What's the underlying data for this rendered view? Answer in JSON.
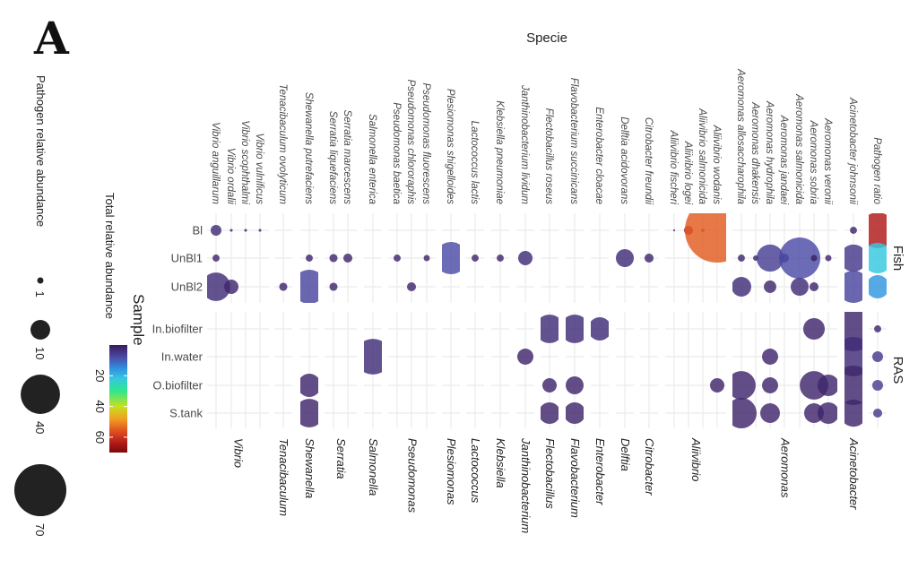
{
  "panel_letter": "A",
  "chart_data": {
    "type": "bubble",
    "xlabel": "Specie",
    "ylabel": "Sample",
    "size_legend": {
      "title": "Pathogen relative abundance",
      "values": [
        1,
        10,
        40,
        70
      ]
    },
    "color_legend": {
      "title": "Total relative abundance",
      "ticks": [
        20,
        40,
        60
      ],
      "range": [
        0,
        70
      ],
      "stops": [
        [
          0,
          "#3b1a5a"
        ],
        [
          8,
          "#4b4aa6"
        ],
        [
          15,
          "#2f8fe0"
        ],
        [
          22,
          "#36c8e0"
        ],
        [
          30,
          "#2ee88a"
        ],
        [
          40,
          "#c8e020"
        ],
        [
          48,
          "#f0a020"
        ],
        [
          56,
          "#e05020"
        ],
        [
          64,
          "#b01818"
        ],
        [
          70,
          "#7a0a0a"
        ]
      ]
    },
    "facet_rows": [
      {
        "label": "Fish",
        "samples": [
          "Bl",
          "UnBl1",
          "UnBl2"
        ]
      },
      {
        "label": "RAS",
        "samples": [
          "In.biofilter",
          "In.water",
          "O.biofilter",
          "S.tank"
        ]
      }
    ],
    "genera": [
      {
        "genus": "Vibrio",
        "species": [
          "Vibrio anguillarum",
          "Vibrio ordalii",
          "Vibrio scophthalmi",
          "Vibrio vulnificus"
        ]
      },
      {
        "genus": "Tenacibaculum",
        "species": [
          "Tenacibaculum ovolyticum"
        ]
      },
      {
        "genus": "Shewanella",
        "species": [
          "Shewanella putrefaciens"
        ]
      },
      {
        "genus": "Serratia",
        "species": [
          "Serratia liquefaciens",
          "Serratia marcescens"
        ]
      },
      {
        "genus": "Salmonella",
        "species": [
          "Salmonella enterica"
        ]
      },
      {
        "genus": "Pseudomonas",
        "species": [
          "Pseudomonas baetica",
          "Pseudomonas chlororaphis",
          "Pseudomonas fluorescens"
        ]
      },
      {
        "genus": "Plesiomonas",
        "species": [
          "Plesiomonas shigelloides"
        ]
      },
      {
        "genus": "Lactococcus",
        "species": [
          "Lactococcus lactis"
        ]
      },
      {
        "genus": "Klebsiella",
        "species": [
          "Klebsiella pneumoniae"
        ]
      },
      {
        "genus": "Janthinobacterium",
        "species": [
          "Janthinobacterium lividum"
        ]
      },
      {
        "genus": "Flectobacillus",
        "species": [
          "Flectobacillus roseus"
        ]
      },
      {
        "genus": "Flavobacterium",
        "species": [
          "Flavobacterium succinicans"
        ]
      },
      {
        "genus": "Enterobacter",
        "species": [
          "Enterobacter cloacae"
        ]
      },
      {
        "genus": "Delftia",
        "species": [
          "Delftia acidovorans"
        ]
      },
      {
        "genus": "Citrobacter",
        "species": [
          "Citrobacter freundii"
        ]
      },
      {
        "genus": "Aliivibrio",
        "species": [
          "Aliivibrio fischeri",
          "Aliivibrio logei",
          "Aliivibrio salmonicida",
          "Aliivibrio wodanis"
        ]
      },
      {
        "genus": "Aeromonas",
        "species": [
          "Aeromonas allosaccharophila",
          "Aeromonas dhakensis",
          "Aeromonas hydrophila",
          "Aeromonas jandaei",
          "Aeromonas salmonicida",
          "Aeromonas sobria",
          "Aeromonas veronii"
        ]
      },
      {
        "genus": "Acinetobacter",
        "species": [
          "Acinetobacter johnsonii"
        ]
      },
      {
        "genus": "",
        "species": [
          "Pathogen ratio"
        ]
      }
    ],
    "points": [
      {
        "species": "Vibrio anguillarum",
        "sample": "Bl",
        "size": 3,
        "total": 3
      },
      {
        "species": "Vibrio ordalii",
        "sample": "Bl",
        "size": 0.2,
        "total": 2
      },
      {
        "species": "Vibrio scophthalmi",
        "sample": "Bl",
        "size": 0.2,
        "total": 2
      },
      {
        "species": "Vibrio vulnificus",
        "sample": "Bl",
        "size": 0.2,
        "total": 2
      },
      {
        "species": "Aliivibrio fischeri",
        "sample": "Bl",
        "size": 0.1,
        "total": 2
      },
      {
        "species": "Aliivibrio logei",
        "sample": "Bl",
        "size": 2.1,
        "total": 64
      },
      {
        "species": "Aliivibrio salmonicida",
        "sample": "Bl",
        "size": 0.3,
        "total": 60
      },
      {
        "species": "Aliivibrio wodanis",
        "sample": "Bl",
        "size": 108,
        "total": 55
      },
      {
        "species": "Acinetobacter johnsonii",
        "sample": "Bl",
        "size": 1.3,
        "total": 2
      },
      {
        "species": "Pathogen ratio",
        "sample": "Bl",
        "size": 33,
        "total": 64
      },
      {
        "species": "Vibrio anguillarum",
        "sample": "UnBl1",
        "size": 1.3,
        "total": 2
      },
      {
        "species": "Shewanella putrefaciens",
        "sample": "UnBl1",
        "size": 1.3,
        "total": 2
      },
      {
        "species": "Serratia liquefaciens",
        "sample": "UnBl1",
        "size": 1.7,
        "total": 2
      },
      {
        "species": "Serratia marcescens",
        "sample": "UnBl1",
        "size": 2.1,
        "total": 2
      },
      {
        "species": "Pseudomonas baetica",
        "sample": "UnBl1",
        "size": 1.3,
        "total": 2
      },
      {
        "species": "Pseudomonas fluorescens",
        "sample": "UnBl1",
        "size": 1,
        "total": 2
      },
      {
        "species": "Plesiomonas shigelloides",
        "sample": "UnBl1",
        "size": 27,
        "total": 8
      },
      {
        "species": "Lactococcus lactis",
        "sample": "UnBl1",
        "size": 1.3,
        "total": 2
      },
      {
        "species": "Klebsiella pneumoniae",
        "sample": "UnBl1",
        "size": 1.3,
        "total": 2
      },
      {
        "species": "Janthinobacterium lividum",
        "sample": "UnBl1",
        "size": 5.3,
        "total": 3
      },
      {
        "species": "Delftia acidovorans",
        "sample": "UnBl1",
        "size": 8.3,
        "total": 3
      },
      {
        "species": "Citrobacter freundii",
        "sample": "UnBl1",
        "size": 2.1,
        "total": 2
      },
      {
        "species": "Aeromonas allosaccharophila",
        "sample": "UnBl1",
        "size": 1.3,
        "total": 2
      },
      {
        "species": "Aeromonas dhakensis",
        "sample": "UnBl1",
        "size": 0.75,
        "total": 2
      },
      {
        "species": "Aeromonas hydrophila",
        "sample": "UnBl1",
        "size": 19,
        "total": 6
      },
      {
        "species": "Aeromonas jandaei",
        "sample": "UnBl1",
        "size": 2.1,
        "total": 4
      },
      {
        "species": "Aeromonas salmonicida",
        "sample": "UnBl1",
        "size": 44,
        "total": 8
      },
      {
        "species": "Aeromonas sobria",
        "sample": "UnBl1",
        "size": 1,
        "total": 1
      },
      {
        "species": "Aeromonas veronii",
        "sample": "UnBl1",
        "size": 1,
        "total": 2
      },
      {
        "species": "Acinetobacter johnsonii",
        "sample": "UnBl1",
        "size": 19,
        "total": 5
      },
      {
        "species": "Pathogen ratio",
        "sample": "UnBl1",
        "size": 24,
        "total": 22
      },
      {
        "species": "Vibrio anguillarum",
        "sample": "UnBl2",
        "size": 21,
        "total": 3
      },
      {
        "species": "Vibrio ordalii",
        "sample": "UnBl2",
        "size": 5.3,
        "total": 2
      },
      {
        "species": "Tenacibaculum ovolyticum",
        "sample": "UnBl2",
        "size": 1.7,
        "total": 2
      },
      {
        "species": "Shewanella putrefaciens",
        "sample": "UnBl2",
        "size": 30,
        "total": 7
      },
      {
        "species": "Serratia liquefaciens",
        "sample": "UnBl2",
        "size": 1.7,
        "total": 2
      },
      {
        "species": "Pseudomonas chlororaphis",
        "sample": "UnBl2",
        "size": 2.1,
        "total": 2
      },
      {
        "species": "Aeromonas allosaccharophila",
        "sample": "UnBl2",
        "size": 10,
        "total": 3
      },
      {
        "species": "Aeromonas hydrophila",
        "sample": "UnBl2",
        "size": 4,
        "total": 2
      },
      {
        "species": "Aeromonas salmonicida",
        "sample": "UnBl2",
        "size": 8.3,
        "total": 3
      },
      {
        "species": "Aeromonas sobria",
        "sample": "UnBl2",
        "size": 2.1,
        "total": 2
      },
      {
        "species": "Acinetobacter johnsonii",
        "sample": "UnBl2",
        "size": 27,
        "total": 7
      },
      {
        "species": "Pathogen ratio",
        "sample": "UnBl2",
        "size": 14,
        "total": 16
      },
      {
        "species": "Flectobacillus roseus",
        "sample": "In.biofilter",
        "size": 21,
        "total": 3
      },
      {
        "species": "Flavobacterium succinicans",
        "sample": "In.biofilter",
        "size": 21,
        "total": 3
      },
      {
        "species": "Enterobacter cloacae",
        "sample": "In.biofilter",
        "size": 14,
        "total": 3
      },
      {
        "species": "Aeromonas sobria",
        "sample": "In.biofilter",
        "size": 12,
        "total": 2
      },
      {
        "species": "Acinetobacter johnsonii",
        "sample": "In.biofilter",
        "size": 52,
        "total": 2
      },
      {
        "species": "Pathogen ratio",
        "sample": "In.biofilter",
        "size": 1.3,
        "total": 2
      },
      {
        "species": "Salmonella enterica",
        "sample": "In.water",
        "size": 33,
        "total": 3
      },
      {
        "species": "Janthinobacterium lividum",
        "sample": "In.water",
        "size": 6.7,
        "total": 2
      },
      {
        "species": "Aeromonas hydrophila",
        "sample": "In.water",
        "size": 6.7,
        "total": 2
      },
      {
        "species": "Acinetobacter johnsonii",
        "sample": "In.water",
        "size": 40,
        "total": 3
      },
      {
        "species": "Pathogen ratio",
        "sample": "In.water",
        "size": 3,
        "total": 5
      },
      {
        "species": "Shewanella putrefaciens",
        "sample": "O.biofilter",
        "size": 14,
        "total": 2
      },
      {
        "species": "Flectobacillus roseus",
        "sample": "O.biofilter",
        "size": 5.3,
        "total": 2
      },
      {
        "species": "Flavobacterium succinicans",
        "sample": "O.biofilter",
        "size": 8.3,
        "total": 2
      },
      {
        "species": "Aliivibrio wodanis",
        "sample": "O.biofilter",
        "size": 5.3,
        "total": 2
      },
      {
        "species": "Aeromonas allosaccharophila",
        "sample": "O.biofilter",
        "size": 21,
        "total": 2
      },
      {
        "species": "Aeromonas hydrophila",
        "sample": "O.biofilter",
        "size": 6.7,
        "total": 2
      },
      {
        "species": "Aeromonas sobria",
        "sample": "O.biofilter",
        "size": 21,
        "total": 2
      },
      {
        "species": "Aeromonas veronii",
        "sample": "O.biofilter",
        "size": 12,
        "total": 2
      },
      {
        "species": "Acinetobacter johnsonii",
        "sample": "O.biofilter",
        "size": 40,
        "total": 2
      },
      {
        "species": "Pathogen ratio",
        "sample": "O.biofilter",
        "size": 3,
        "total": 6
      },
      {
        "species": "Shewanella putrefaciens",
        "sample": "S.tank",
        "size": 21,
        "total": 2
      },
      {
        "species": "Flectobacillus roseus",
        "sample": "S.tank",
        "size": 12,
        "total": 2
      },
      {
        "species": "Flavobacterium succinicans",
        "sample": "S.tank",
        "size": 12,
        "total": 2
      },
      {
        "species": "Aeromonas allosaccharophila",
        "sample": "S.tank",
        "size": 24,
        "total": 2
      },
      {
        "species": "Aeromonas hydrophila",
        "sample": "S.tank",
        "size": 10,
        "total": 2
      },
      {
        "species": "Aeromonas sobria",
        "sample": "S.tank",
        "size": 10,
        "total": 2
      },
      {
        "species": "Aeromonas veronii",
        "sample": "S.tank",
        "size": 12,
        "total": 2
      },
      {
        "species": "Acinetobacter johnsonii",
        "sample": "S.tank",
        "size": 19,
        "total": 2
      },
      {
        "species": "Pathogen ratio",
        "sample": "S.tank",
        "size": 2.1,
        "total": 5
      }
    ]
  }
}
